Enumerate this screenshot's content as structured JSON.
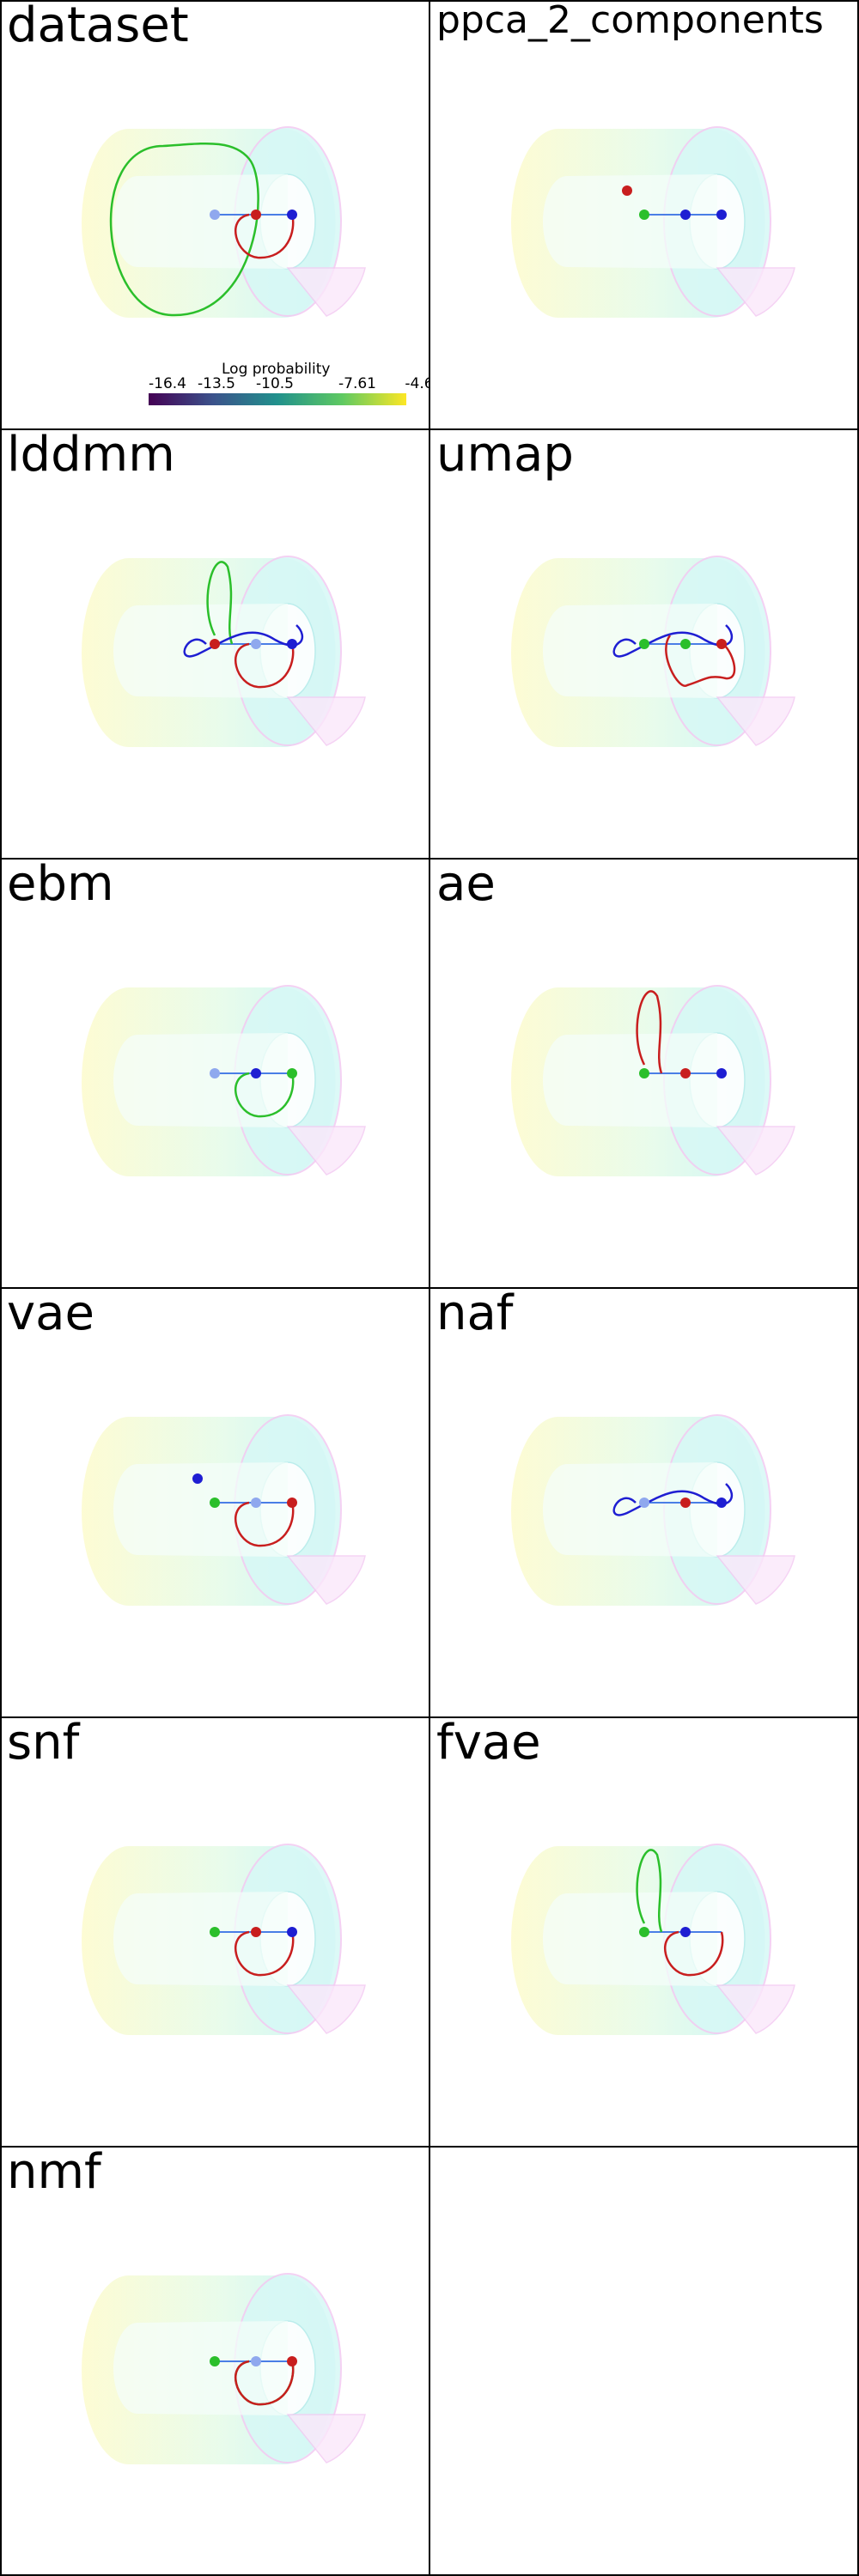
{
  "panels": [
    {
      "label": "dataset",
      "curves": [
        {
          "color": "green",
          "shape": "big-loop"
        },
        {
          "color": "red",
          "shape": "loop"
        }
      ],
      "points": [
        {
          "color": "lightblue"
        },
        {
          "color": "red"
        },
        {
          "color": "blue"
        }
      ],
      "has_colorbar": true
    },
    {
      "label": "ppca_2_components",
      "curves": [],
      "points": [
        {
          "color": "green"
        },
        {
          "color": "blue"
        },
        {
          "color": "blue"
        },
        {
          "color": "red"
        }
      ],
      "has_colorbar": false
    },
    {
      "label": "lddmm",
      "curves": [
        {
          "color": "green",
          "shape": "tall-loop"
        },
        {
          "color": "blue",
          "shape": "wave"
        },
        {
          "color": "red",
          "shape": "loop"
        }
      ],
      "points": [
        {
          "color": "red"
        },
        {
          "color": "lightblue"
        },
        {
          "color": "blue"
        }
      ],
      "has_colorbar": false
    },
    {
      "label": "umap",
      "curves": [
        {
          "color": "blue",
          "shape": "wave"
        },
        {
          "color": "red",
          "shape": "blob"
        }
      ],
      "points": [
        {
          "color": "green"
        },
        {
          "color": "green"
        },
        {
          "color": "red"
        }
      ],
      "has_colorbar": false
    },
    {
      "label": "ebm",
      "curves": [
        {
          "color": "green",
          "shape": "loop"
        }
      ],
      "points": [
        {
          "color": "lightblue"
        },
        {
          "color": "blue"
        },
        {
          "color": "green"
        }
      ],
      "has_colorbar": false
    },
    {
      "label": "ae",
      "curves": [
        {
          "color": "red",
          "shape": "tall-loop"
        }
      ],
      "points": [
        {
          "color": "green"
        },
        {
          "color": "red"
        },
        {
          "color": "blue"
        }
      ],
      "has_colorbar": false
    },
    {
      "label": "vae",
      "curves": [
        {
          "color": "red",
          "shape": "loop"
        }
      ],
      "points": [
        {
          "color": "green"
        },
        {
          "color": "lightblue"
        },
        {
          "color": "red"
        },
        {
          "color": "blue"
        }
      ],
      "has_colorbar": false
    },
    {
      "label": "naf",
      "curves": [
        {
          "color": "blue",
          "shape": "wave"
        }
      ],
      "points": [
        {
          "color": "lightblue"
        },
        {
          "color": "red"
        },
        {
          "color": "blue"
        }
      ],
      "has_colorbar": false
    },
    {
      "label": "snf",
      "curves": [
        {
          "color": "red",
          "shape": "loop"
        }
      ],
      "points": [
        {
          "color": "green"
        },
        {
          "color": "red"
        },
        {
          "color": "blue"
        }
      ],
      "has_colorbar": false
    },
    {
      "label": "fvae",
      "curves": [
        {
          "color": "green",
          "shape": "tall-loop"
        },
        {
          "color": "red",
          "shape": "loop"
        }
      ],
      "points": [
        {
          "color": "green"
        },
        {
          "color": "blue"
        }
      ],
      "has_colorbar": false
    },
    {
      "label": "nmf",
      "curves": [
        {
          "color": "green",
          "shape": "loop"
        },
        {
          "color": "red",
          "shape": "loop"
        }
      ],
      "points": [
        {
          "color": "green"
        },
        {
          "color": "lightblue"
        },
        {
          "color": "red"
        }
      ],
      "has_colorbar": false
    },
    {
      "label": "",
      "curves": [],
      "points": [],
      "has_colorbar": false
    }
  ],
  "colorbar": {
    "title": "Log probability",
    "ticks": [
      "-16.4",
      "-13.5",
      "-10.5",
      "-7.61",
      "-4.6"
    ],
    "colormap": "viridis"
  },
  "colors": {
    "cylinder_yellow": "#fdfbcf",
    "cylinder_cyan": "#c8f5f5",
    "cylinder_pink": "#f3c9f2",
    "green": "#2bbf2b",
    "red": "#c81e1e",
    "blue": "#1e1ed2",
    "lightblue": "#8fa8ee",
    "border": "#000000"
  }
}
